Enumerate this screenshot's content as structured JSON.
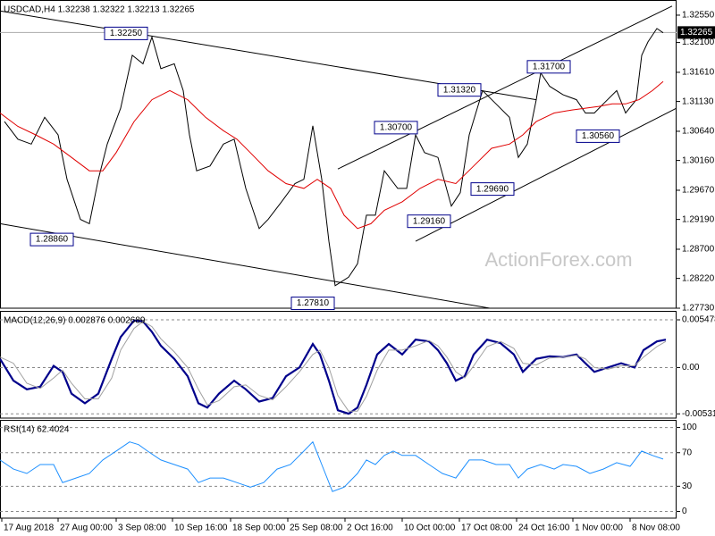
{
  "chart_data": [
    {
      "type": "line",
      "title": "USDCAD,H4 1.32238 1.32322 1.32213 1.32265",
      "watermark": "ActionForex.com",
      "xlim": [
        0,
        378.5
      ],
      "ylim": [
        1.2773,
        1.3277
      ],
      "yticks": [
        {
          "value": 1.3255,
          "label": "1.32550"
        },
        {
          "value": 1.321,
          "label": "1.32100"
        },
        {
          "value": 1.3161,
          "label": "1.31610"
        },
        {
          "value": 1.3113,
          "label": "1.31130"
        },
        {
          "value": 1.3064,
          "label": "1.30640"
        },
        {
          "value": 1.3016,
          "label": "1.30160"
        },
        {
          "value": 1.2967,
          "label": "1.29670"
        },
        {
          "value": 1.2919,
          "label": "1.29190"
        },
        {
          "value": 1.287,
          "label": "1.28700"
        },
        {
          "value": 1.2822,
          "label": "1.28220"
        },
        {
          "value": 1.2773,
          "label": "1.27730"
        }
      ],
      "grid": false,
      "series": [
        {
          "color": "#000000",
          "x": [
            2.5,
            10,
            17.5,
            25,
            32.5,
            37.5,
            45,
            50,
            55,
            60,
            67.5,
            74,
            80,
            85,
            90,
            97.5,
            102.5,
            106,
            110,
            117.5,
            125,
            131,
            137.5,
            145,
            150,
            157.5,
            165,
            170,
            175,
            180,
            184,
            187.5,
            195,
            200,
            205,
            210,
            215,
            222.5,
            227.5,
            232.5,
            237.5,
            245,
            252.5,
            257.5,
            262.5,
            270,
            277.5,
            285,
            290,
            295,
            300,
            302.5,
            307.5,
            315,
            322.5,
            327.5,
            332.5,
            337.5,
            345,
            350,
            356,
            359,
            362.5,
            367.5,
            371
          ],
          "values": [
            1.308,
            1.3051,
            1.3043,
            1.3087,
            1.3058,
            1.2985,
            1.2919,
            1.2912,
            1.2985,
            1.3043,
            1.3102,
            1.3189,
            1.3175,
            1.3219,
            1.3167,
            1.3175,
            1.3131,
            1.3058,
            1.2999,
            1.3007,
            1.3043,
            1.3051,
            1.297,
            1.2904,
            1.2919,
            1.2948,
            1.2978,
            1.2985,
            1.3073,
            1.2985,
            1.2883,
            1.281,
            1.2824,
            1.2846,
            1.2926,
            1.2926,
            1.2999,
            1.297,
            1.297,
            1.3058,
            1.3029,
            1.3021,
            1.2941,
            1.2963,
            1.3058,
            1.3131,
            1.3109,
            1.3087,
            1.3021,
            1.3043,
            1.3116,
            1.316,
            1.3138,
            1.3124,
            1.3116,
            1.3094,
            1.3094,
            1.3109,
            1.3131,
            1.3094,
            1.3116,
            1.3189,
            1.3211,
            1.3233,
            1.3226
          ]
        },
        {
          "color": "#e00000",
          "x": [
            0,
            10,
            20,
            30,
            40,
            50,
            57.5,
            65,
            75,
            85,
            95,
            105,
            115,
            125,
            132.5,
            140,
            150,
            160,
            170,
            177.5,
            185,
            192.5,
            200,
            207.5,
            215,
            225,
            235,
            245,
            255,
            265,
            275,
            285,
            292.5,
            300,
            310,
            320,
            327.5,
            335,
            342.5,
            350,
            357.5,
            365,
            371
          ],
          "values": [
            1.3094,
            1.3072,
            1.3058,
            1.3043,
            1.3021,
            1.2999,
            1.2999,
            1.3029,
            1.308,
            1.3116,
            1.3131,
            1.3116,
            1.3087,
            1.3065,
            1.3051,
            1.3029,
            1.2999,
            1.2978,
            1.297,
            1.2985,
            1.297,
            1.2926,
            1.2904,
            1.2912,
            1.2934,
            1.2948,
            1.297,
            1.2985,
            1.2978,
            1.3007,
            1.3036,
            1.3043,
            1.3058,
            1.308,
            1.3094,
            1.3099,
            1.3102,
            1.3105,
            1.3109,
            1.3109,
            1.3116,
            1.3131,
            1.3146
          ]
        }
      ],
      "trendlines": [
        {
          "color": "#000000",
          "x": [
            0,
            300
          ],
          "values": [
            1.3262,
            1.3116
          ]
        },
        {
          "color": "#000000",
          "x": [
            0,
            274
          ],
          "values": [
            1.2912,
            1.2773
          ]
        },
        {
          "color": "#000000",
          "x": [
            189,
            376
          ],
          "values": [
            1.3002,
            1.327
          ]
        },
        {
          "color": "#000000",
          "x": [
            232.5,
            378.5
          ],
          "values": [
            1.2883,
            1.3102
          ]
        }
      ],
      "annotations": [
        {
          "label": "1.32250",
          "value": 1.3225
        },
        {
          "label": "1.28860",
          "value": 1.2886
        },
        {
          "label": "1.27810",
          "value": 1.2781
        },
        {
          "label": "1.30700",
          "value": 1.307
        },
        {
          "label": "1.31320",
          "value": 1.3132
        },
        {
          "label": "1.31700",
          "value": 1.317
        },
        {
          "label": "1.30560",
          "value": 1.3056
        },
        {
          "label": "1.29690",
          "value": 1.2969
        },
        {
          "label": "1.29160",
          "value": 1.2916
        }
      ],
      "current_price": {
        "label": "1.32265",
        "value": 1.32265
      }
    },
    {
      "type": "line",
      "title": "MACD(12,26,9) 0.002876 0.002689",
      "xlim": [
        0,
        378.5
      ],
      "ylim": [
        -0.0058,
        0.0063
      ],
      "yticks": [
        0.005478,
        {
          "value": 0,
          "label": "0.00"
        },
        -0.005314
      ],
      "grid": true,
      "series": [
        {
          "color": "#00008b",
          "x": [
            0,
            7.5,
            15,
            22.5,
            30,
            35,
            40,
            47.5,
            55,
            62.5,
            67.5,
            75,
            80,
            85,
            90,
            97.5,
            105,
            111,
            116,
            122.5,
            131,
            137.5,
            145,
            152.5,
            160,
            167.5,
            175,
            179,
            184,
            189,
            195,
            200,
            205,
            211,
            217.5,
            225,
            232.5,
            240,
            245,
            250,
            255,
            260,
            265,
            272.5,
            280,
            287.5,
            292.5,
            300,
            307.5,
            315,
            322.5,
            327.5,
            332.5,
            340,
            347.5,
            355,
            360,
            367.5,
            372.5
          ],
          "values": [
            0.001,
            -0.0015,
            -0.0025,
            -0.0022,
            0.0002,
            -0.0005,
            -0.003,
            -0.0041,
            -0.003,
            0.001,
            0.0035,
            0.0054,
            0.0053,
            0.0041,
            0.0025,
            0.001,
            -0.001,
            -0.0041,
            -0.0046,
            -0.003,
            -0.0015,
            -0.0025,
            -0.0039,
            -0.0035,
            -0.001,
            0,
            0.0027,
            0.0015,
            -0.0015,
            -0.0049,
            -0.0053,
            -0.0046,
            -0.002,
            0.0015,
            0.0027,
            0.0015,
            0.0032,
            0.003,
            0.002,
            0.0005,
            -0.0015,
            -0.001,
            0.0015,
            0.0032,
            0.0028,
            0.0015,
            -0.0005,
            0.001,
            0.0013,
            0.0012,
            0.0015,
            0.0005,
            -0.0005,
            0,
            0.0005,
            0,
            0.002,
            0.003,
            0.0032
          ]
        },
        {
          "color": "#a0a0a0",
          "x": [
            0,
            7.5,
            15,
            22.5,
            30,
            35,
            40,
            47.5,
            55,
            62.5,
            67.5,
            75,
            80,
            85,
            90,
            97.5,
            105,
            111,
            116,
            122.5,
            131,
            137.5,
            145,
            152.5,
            160,
            167.5,
            175,
            179,
            184,
            189,
            195,
            200,
            205,
            211,
            217.5,
            225,
            232.5,
            240,
            245,
            250,
            255,
            260,
            265,
            272.5,
            280,
            287.5,
            292.5,
            300,
            307.5,
            315,
            322.5,
            327.5,
            332.5,
            340,
            347.5,
            355,
            360,
            367.5,
            372.5
          ],
          "values": [
            0.0012,
            0.0005,
            -0.0018,
            -0.0024,
            -0.0012,
            -0.0003,
            -0.0018,
            -0.0036,
            -0.0036,
            -0.0012,
            0.002,
            0.0045,
            0.0053,
            0.0047,
            0.0033,
            0.0018,
            0,
            -0.0025,
            -0.0043,
            -0.0038,
            -0.0022,
            -0.002,
            -0.0032,
            -0.0037,
            -0.0022,
            -0.0005,
            0.0015,
            0.002,
            0,
            -0.0032,
            -0.005,
            -0.005,
            -0.0033,
            -0.0003,
            0.002,
            0.002,
            0.0025,
            0.0031,
            0.0025,
            0.0012,
            -0.0005,
            -0.0012,
            0.0002,
            0.0024,
            0.003,
            0.0022,
            0.0005,
            0.0003,
            0.0011,
            0.0012,
            0.0014,
            0.001,
            0,
            -0.0002,
            0.0002,
            0.0002,
            0.0012,
            0.0024,
            0.003
          ]
        }
      ]
    },
    {
      "type": "line",
      "title": "RSI(14) 62.4024",
      "xlim": [
        0,
        378.5
      ],
      "ylim": [
        -8,
        107
      ],
      "yticks": [
        100,
        70,
        30,
        0
      ],
      "grid": true,
      "xticks": [
        {
          "value": 1,
          "label": "17 Aug 2018"
        },
        {
          "value": 32.5,
          "label": "27 Aug 00:00"
        },
        {
          "value": 65,
          "label": "3 Sep 08:00"
        },
        {
          "value": 96.5,
          "label": "10 Sep 16:00"
        },
        {
          "value": 129,
          "label": "18 Sep 00:00"
        },
        {
          "value": 161,
          "label": "25 Sep 08:00"
        },
        {
          "value": 193,
          "label": "2 Oct 16:00"
        },
        {
          "value": 225,
          "label": "10 Oct 00:00"
        },
        {
          "value": 257,
          "label": "17 Oct 08:00"
        },
        {
          "value": 289,
          "label": "24 Oct 16:00"
        },
        {
          "value": 320.5,
          "label": "1 Nov 00:00"
        },
        {
          "value": 352.5,
          "label": "8 Nov 08:00"
        }
      ],
      "series": [
        {
          "color": "#1e90ff",
          "x": [
            0,
            7.5,
            15,
            22.5,
            30,
            35,
            42.5,
            50,
            57.5,
            65,
            72.5,
            77.5,
            82.5,
            90,
            97.5,
            105,
            111,
            117.5,
            125,
            132.5,
            140,
            147.5,
            155,
            162.5,
            170,
            175,
            180,
            186,
            192.5,
            200,
            205,
            210,
            215,
            220,
            225,
            232.5,
            240,
            247.5,
            255,
            262.5,
            270,
            277.5,
            285,
            290,
            295,
            302.5,
            310,
            315,
            322.5,
            330,
            337.5,
            345,
            352.5,
            359,
            365,
            371
          ],
          "values": [
            61.3,
            50.5,
            45.2,
            55.9,
            55.9,
            34.4,
            39.8,
            45.2,
            61.3,
            72.0,
            82.8,
            79.6,
            72.0,
            61.3,
            55.9,
            50.5,
            34.4,
            39.8,
            39.8,
            34.4,
            29.0,
            34.4,
            50.5,
            55.9,
            72.0,
            82.8,
            55.9,
            23.7,
            29.0,
            45.2,
            61.3,
            55.9,
            66.7,
            72.0,
            66.7,
            66.7,
            55.9,
            45.2,
            39.8,
            61.3,
            61.3,
            55.9,
            55.9,
            39.8,
            50.5,
            55.9,
            50.5,
            55.9,
            53.8,
            45.2,
            50.5,
            58.1,
            53.8,
            72.0,
            66.7,
            62.4
          ]
        }
      ]
    }
  ]
}
